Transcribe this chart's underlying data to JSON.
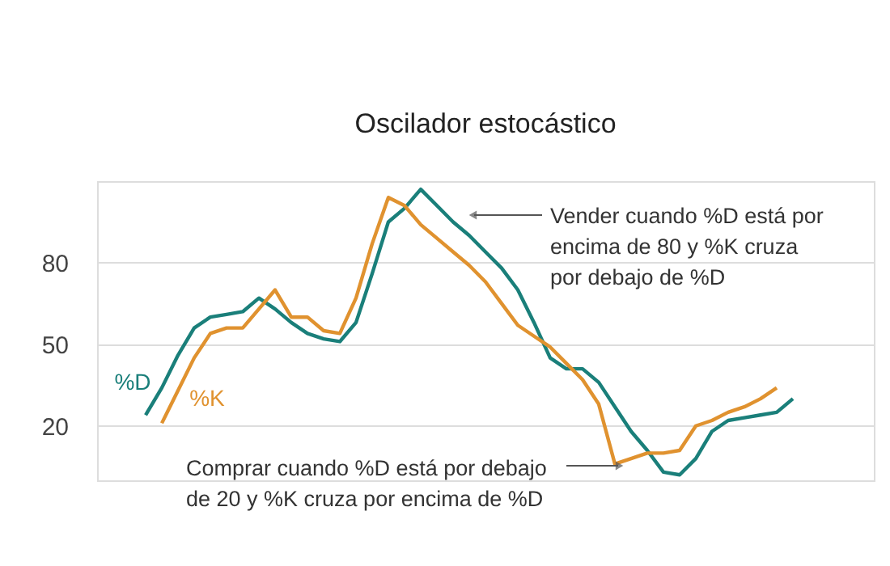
{
  "chart_data": {
    "type": "line",
    "title": "Oscilador estocástico",
    "categories": [
      null,
      null,
      null,
      null,
      null,
      null,
      null,
      null,
      null,
      null,
      null,
      null,
      null,
      null,
      null,
      null,
      null,
      null,
      null,
      null,
      null,
      null,
      null,
      null,
      null,
      null,
      null,
      null,
      null,
      null,
      null,
      null,
      null,
      null,
      null,
      null,
      null,
      null,
      null,
      null,
      null
    ],
    "series": [
      {
        "name": "%D",
        "color": "#1a7f7a",
        "values": [
          24,
          34,
          46,
          56,
          60,
          61,
          62,
          67,
          63,
          58,
          54,
          52,
          51,
          58,
          76,
          95,
          100,
          107,
          101,
          95,
          90,
          84,
          78,
          70,
          58,
          45,
          41,
          41,
          36,
          27,
          18,
          11,
          3,
          2,
          8,
          18,
          22,
          23,
          24,
          25,
          30
        ]
      },
      {
        "name": "%K",
        "color": "#e0922f",
        "values": [
          null,
          21,
          33,
          45,
          54,
          56,
          56,
          63,
          70,
          60,
          60,
          55,
          54,
          67,
          87,
          104,
          101,
          94,
          89,
          84,
          79,
          73,
          65,
          57,
          53,
          49,
          43,
          37,
          28,
          6,
          8,
          10,
          10,
          11,
          20,
          22,
          25,
          27,
          30,
          34,
          null
        ]
      }
    ],
    "ylim": [
      0,
      110
    ],
    "yticks": [
      20,
      50,
      80
    ],
    "grid": "y",
    "tick_labels": "y",
    "legend": false,
    "marker": "none",
    "line_style": "solid",
    "annotations": [
      "Vender cuando %D está por encima de 80 y %K cruza por debajo de %D",
      "Comprar cuando %D está por debajo de 20 y %K cruza por encima de %D"
    ]
  }
}
